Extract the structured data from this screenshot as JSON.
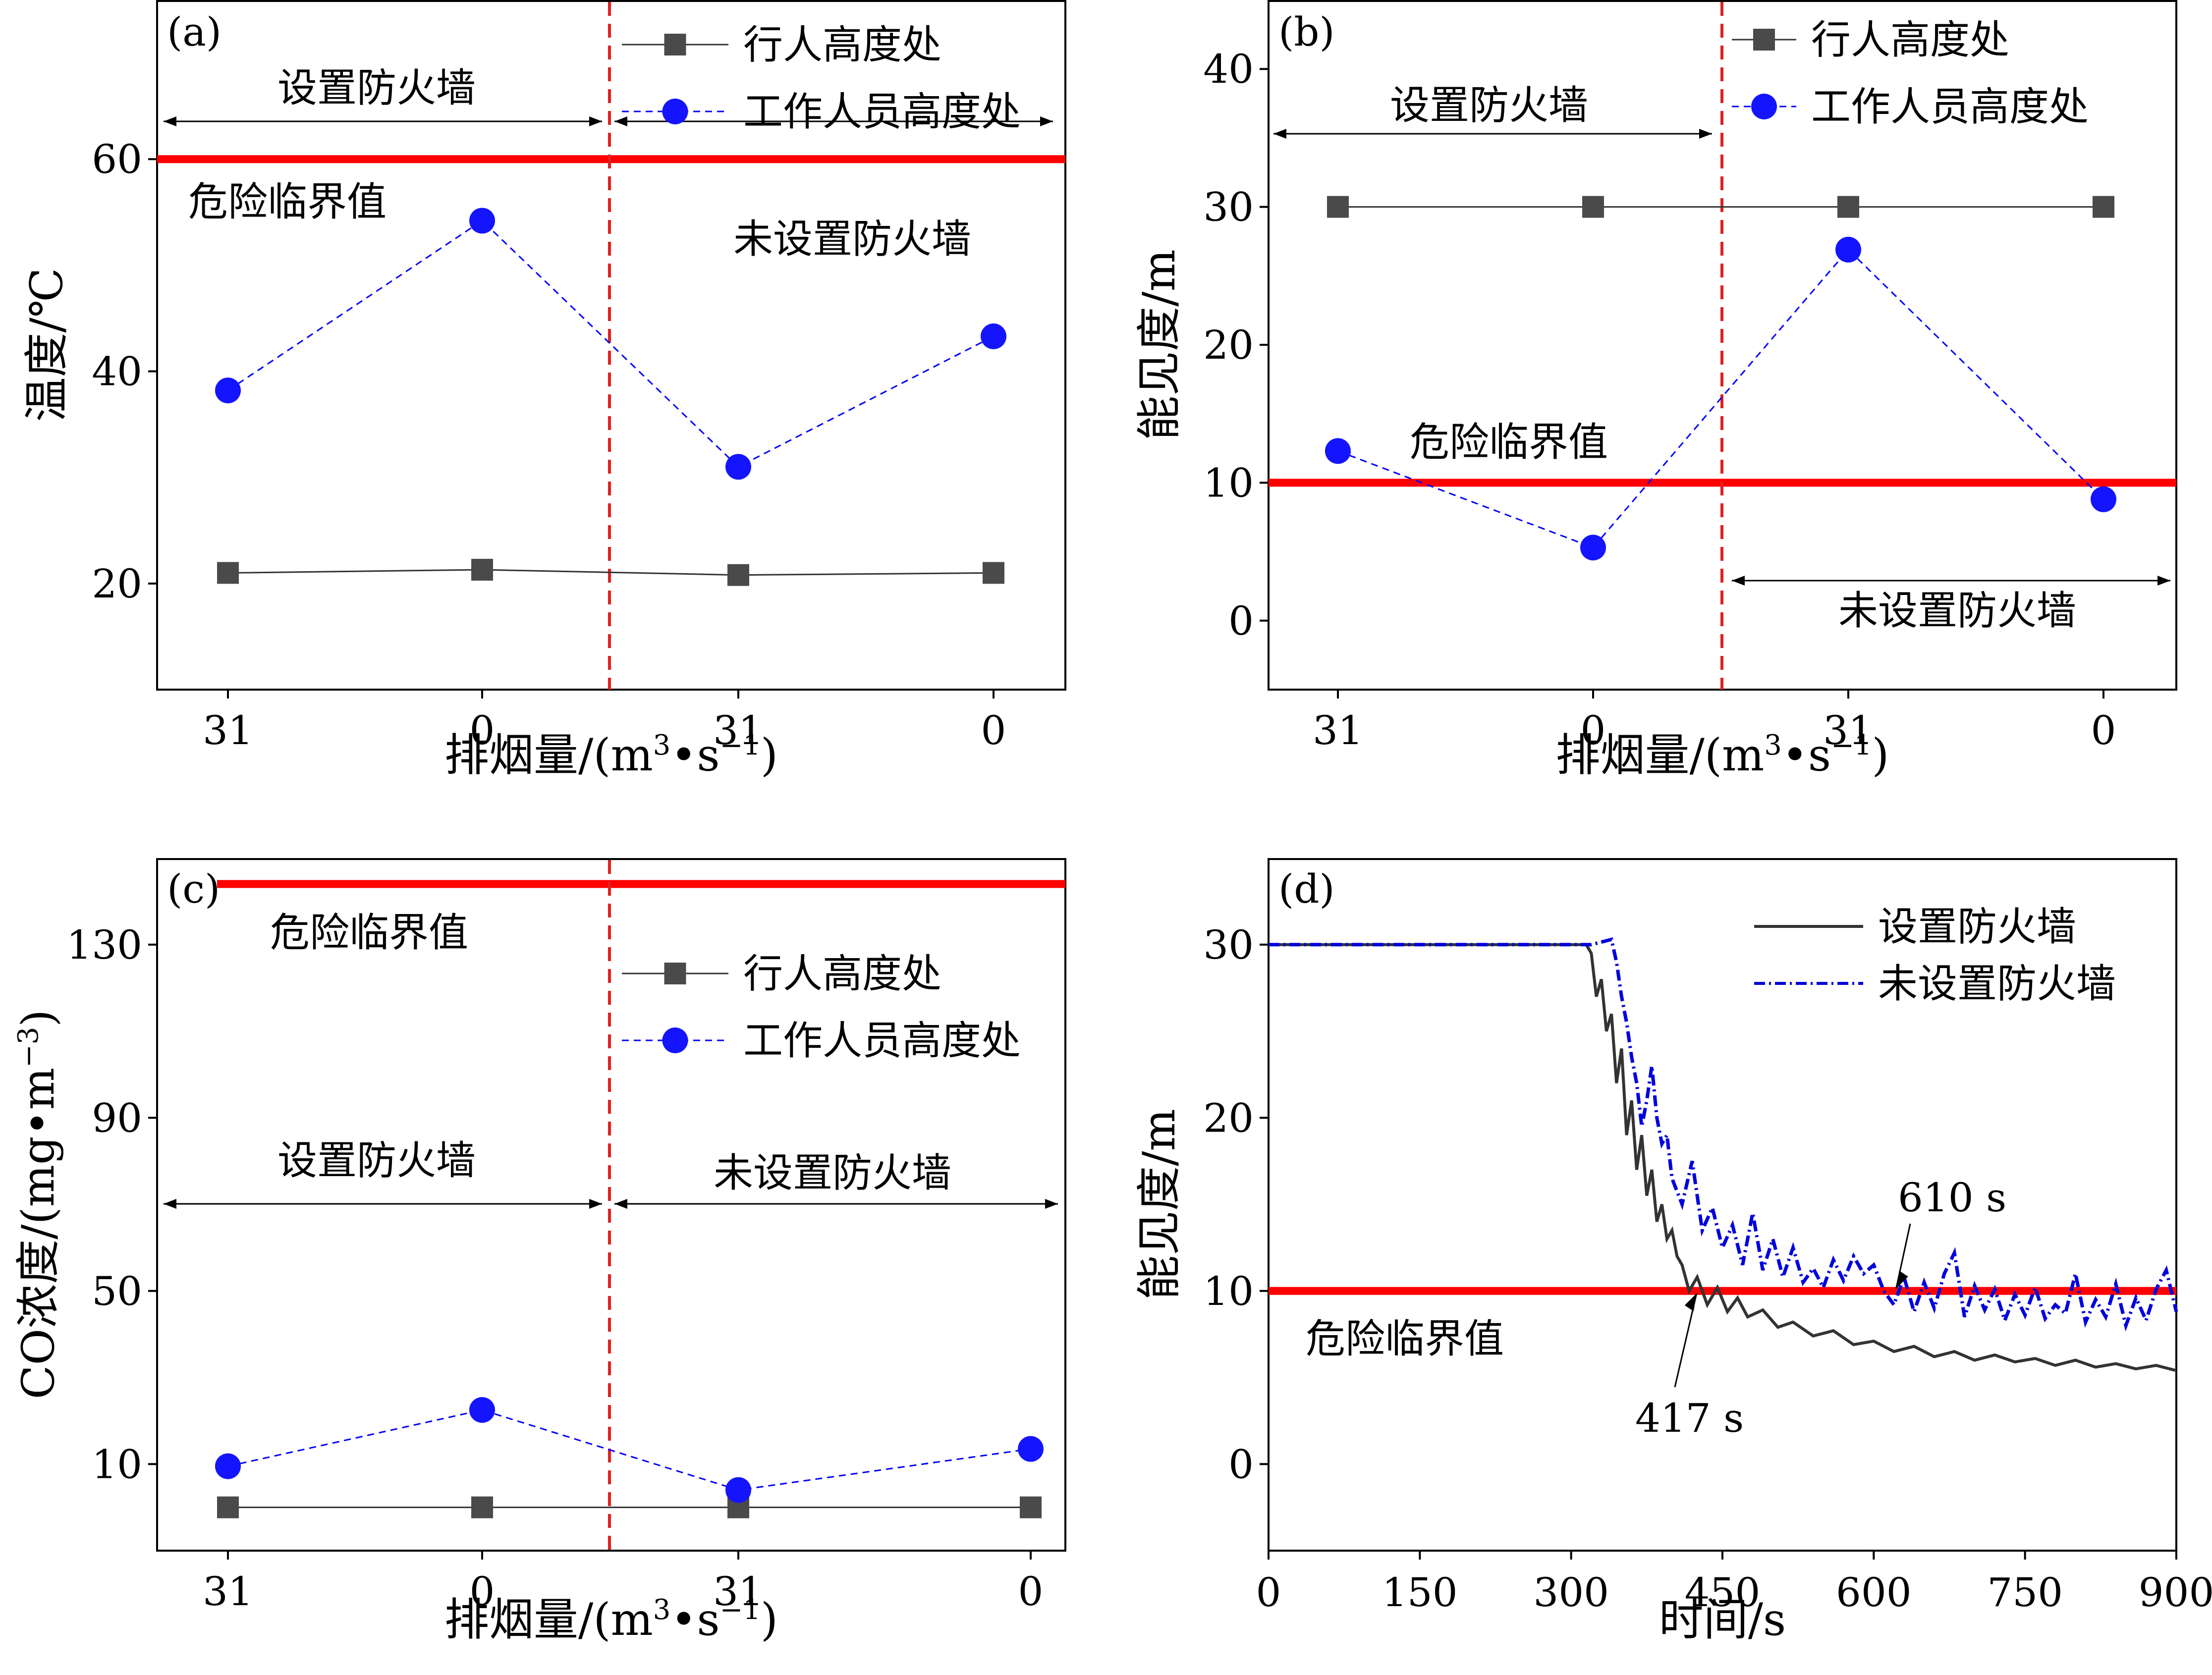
{
  "colors": {
    "pedestrian": "#4a4a4a",
    "worker": "#1414ff",
    "threshold": "#ff0000",
    "divider": "#e02020",
    "with_wall": "#333333",
    "without_wall": "#0000dd"
  },
  "chart_data": [
    {
      "id": "a",
      "type": "line",
      "panel_label": "(a)",
      "xlabel": "排烟量/(m³•s⁻¹)",
      "ylabel": "温度/℃",
      "categories": [
        "31",
        "0",
        "31",
        "0"
      ],
      "ylim": [
        10,
        75
      ],
      "yticks": [
        20,
        40,
        60
      ],
      "series": [
        {
          "name": "行人高度处",
          "values": [
            21.0,
            21.3,
            20.8,
            21.0
          ]
        },
        {
          "name": "工作人员高度处",
          "values": [
            38.2,
            54.2,
            31.0,
            43.3
          ]
        }
      ],
      "threshold": {
        "value": 60,
        "label": "危险临界值"
      },
      "regions": {
        "with": "设置防火墙",
        "without": "未设置防火墙"
      },
      "legend": "top-right"
    },
    {
      "id": "b",
      "type": "line",
      "panel_label": "(b)",
      "xlabel": "排烟量/(m³•s⁻¹)",
      "ylabel": "能见度/m",
      "categories": [
        "31",
        "0",
        "31",
        "0"
      ],
      "ylim": [
        -5,
        45
      ],
      "yticks": [
        0,
        10,
        20,
        30,
        40
      ],
      "series": [
        {
          "name": "行人高度处",
          "values": [
            30,
            30,
            30,
            30
          ]
        },
        {
          "name": "工作人员高度处",
          "values": [
            12.3,
            5.3,
            26.9,
            8.8
          ]
        }
      ],
      "threshold": {
        "value": 10,
        "label": "危险临界值"
      },
      "regions": {
        "with": "设置防火墙",
        "without": "未设置防火墙"
      },
      "legend": "top-right"
    },
    {
      "id": "c",
      "type": "line",
      "panel_label": "(c)",
      "xlabel": "排烟量/(m³•s⁻¹)",
      "ylabel": "CO浓度/(mg•m⁻³)",
      "categories": [
        "31",
        "0",
        "31",
        "0"
      ],
      "ylim": [
        -10,
        150
      ],
      "yticks": [
        10,
        50,
        90,
        130
      ],
      "series": [
        {
          "name": "行人高度处",
          "values": [
            0,
            0,
            0,
            0
          ]
        },
        {
          "name": "工作人员高度处",
          "values": [
            9.5,
            22.5,
            4.0,
            13.5
          ]
        }
      ],
      "threshold": {
        "value": 144,
        "label": "危险临界值"
      },
      "regions": {
        "with": "设置防火墙",
        "without": "未设置防火墙"
      },
      "legend": "top-right"
    },
    {
      "id": "d",
      "type": "line",
      "panel_label": "(d)",
      "xlabel": "时间/s",
      "ylabel": "能见度/m",
      "xlim": [
        0,
        900
      ],
      "xticks": [
        0,
        150,
        300,
        450,
        600,
        750,
        900
      ],
      "ylim": [
        -5,
        35
      ],
      "yticks": [
        0,
        10,
        20,
        30
      ],
      "series": [
        {
          "name": "设置防火墙",
          "x": [
            0,
            300,
            315,
            320,
            325,
            330,
            335,
            340,
            345,
            350,
            355,
            360,
            365,
            370,
            375,
            380,
            385,
            390,
            395,
            400,
            405,
            410,
            417,
            425,
            435,
            445,
            455,
            465,
            475,
            490,
            505,
            520,
            540,
            560,
            580,
            600,
            620,
            640,
            660,
            680,
            700,
            720,
            740,
            760,
            780,
            800,
            820,
            840,
            860,
            880,
            900
          ],
          "values": [
            30,
            30,
            30,
            29.5,
            27,
            28,
            25,
            26,
            22,
            24,
            19,
            21,
            17,
            19,
            15.5,
            17,
            14,
            15,
            13,
            13.5,
            12,
            11.5,
            10,
            10.8,
            9.2,
            10.2,
            8.8,
            9.6,
            8.5,
            8.9,
            7.9,
            8.2,
            7.4,
            7.7,
            6.9,
            7.1,
            6.5,
            6.8,
            6.2,
            6.5,
            6.0,
            6.3,
            5.9,
            6.1,
            5.7,
            6.0,
            5.6,
            5.8,
            5.5,
            5.7,
            5.4
          ]
        },
        {
          "name": "未设置防火墙",
          "x": [
            0,
            320,
            340,
            345,
            350,
            355,
            360,
            365,
            370,
            375,
            380,
            385,
            390,
            395,
            400,
            410,
            420,
            430,
            440,
            450,
            460,
            470,
            480,
            490,
            500,
            510,
            520,
            530,
            540,
            550,
            560,
            570,
            580,
            590,
            600,
            610,
            620,
            630,
            640,
            650,
            660,
            670,
            680,
            690,
            700,
            710,
            720,
            730,
            740,
            750,
            760,
            770,
            780,
            790,
            800,
            810,
            820,
            830,
            840,
            850,
            860,
            870,
            880,
            890,
            900
          ],
          "values": [
            30,
            30,
            30.3,
            29,
            27,
            25.5,
            23.5,
            22,
            19.5,
            21,
            23,
            20,
            18.5,
            19,
            16.5,
            15,
            17.5,
            13.5,
            14.8,
            12.5,
            13.8,
            11.5,
            14.5,
            11.2,
            13,
            10.8,
            12.5,
            10.5,
            11.3,
            10.2,
            11.8,
            10.6,
            12,
            11,
            11.5,
            10,
            9.2,
            10.8,
            8.8,
            10.5,
            9,
            11,
            12.2,
            8.5,
            10.3,
            8.9,
            10.1,
            8.3,
            9.8,
            8.6,
            10.2,
            8.4,
            9.2,
            8.7,
            11,
            8.2,
            9.5,
            8.5,
            10.4,
            8,
            9.6,
            8.3,
            10.1,
            11.2,
            8.8
          ]
        }
      ],
      "threshold": {
        "value": 10,
        "label": "危险临界值"
      },
      "annotations": [
        {
          "text": "610 s",
          "x": 610,
          "y": 10
        },
        {
          "text": "417 s",
          "x": 417,
          "y": 10
        }
      ],
      "legend": "top-right"
    }
  ]
}
